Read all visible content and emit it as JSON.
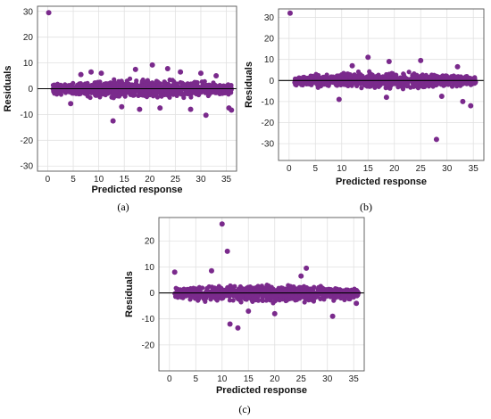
{
  "colors": {
    "points": "#7a2a8c",
    "zero_line": "#000000",
    "grid": "#e1e1e1"
  },
  "chart_data": [
    {
      "type": "scatter",
      "label": "(a)",
      "xlabel": "Predicted response",
      "ylabel": "Residuals",
      "xlim": [
        -2,
        37
      ],
      "ylim": [
        -32,
        32
      ],
      "xticks": [
        0,
        5,
        10,
        15,
        20,
        25,
        30,
        35
      ],
      "yticks": [
        -30,
        -20,
        -10,
        0,
        10,
        20,
        30
      ],
      "grid": true,
      "band": {
        "x_start": 1,
        "x_end": 36,
        "upper_mid": 4.5,
        "lower_mid": -4.5,
        "upper_end": 2.5,
        "lower_end": -3
      },
      "points": [
        {
          "x": 0.2,
          "y": 29.5
        },
        {
          "x": 12.8,
          "y": -12.5
        },
        {
          "x": 20.5,
          "y": 9.2
        },
        {
          "x": 17.2,
          "y": 7.5
        },
        {
          "x": 23.5,
          "y": 7.8
        },
        {
          "x": 8.5,
          "y": 6.5
        },
        {
          "x": 10.5,
          "y": 6.0
        },
        {
          "x": 31.0,
          "y": -10.3
        },
        {
          "x": 4.5,
          "y": -5.8
        },
        {
          "x": 33.0,
          "y": 5.0
        },
        {
          "x": 35.5,
          "y": -7.5
        },
        {
          "x": 36.0,
          "y": -8.3
        },
        {
          "x": 28.0,
          "y": -8.0
        },
        {
          "x": 26.0,
          "y": 6.5
        },
        {
          "x": 22.0,
          "y": -7.5
        },
        {
          "x": 14.5,
          "y": -7.0
        },
        {
          "x": 6.5,
          "y": 5.5
        },
        {
          "x": 30.0,
          "y": 6.0
        },
        {
          "x": 18.0,
          "y": -8.0
        }
      ]
    },
    {
      "type": "scatter",
      "label": "(b)",
      "xlabel": "Predicted response",
      "ylabel": "Residuals",
      "xlim": [
        -2,
        37
      ],
      "ylim": [
        -38,
        34
      ],
      "xticks": [
        0,
        5,
        10,
        15,
        20,
        25,
        30,
        35
      ],
      "yticks": [
        -30,
        -20,
        -10,
        0,
        10,
        20,
        30
      ],
      "grid": true,
      "band": {
        "x_start": 1,
        "x_end": 35.5,
        "upper_mid": 5,
        "lower_mid": -5,
        "upper_end": 2.5,
        "lower_end": -3
      },
      "points": [
        {
          "x": 0.2,
          "y": 32
        },
        {
          "x": 28.0,
          "y": -28
        },
        {
          "x": 34.5,
          "y": -12
        },
        {
          "x": 33.0,
          "y": -10
        },
        {
          "x": 15.0,
          "y": 11
        },
        {
          "x": 25.0,
          "y": 9.5
        },
        {
          "x": 19.0,
          "y": 9.0
        },
        {
          "x": 9.5,
          "y": -9
        },
        {
          "x": 18.5,
          "y": -8
        },
        {
          "x": 29.0,
          "y": -7.5
        },
        {
          "x": 32.0,
          "y": 6.5
        },
        {
          "x": 12.0,
          "y": 7
        }
      ]
    },
    {
      "type": "scatter",
      "label": "(c)",
      "xlabel": "Predicted response",
      "ylabel": "Residuals",
      "xlim": [
        -2,
        37
      ],
      "ylim": [
        -30,
        29
      ],
      "xticks": [
        0,
        5,
        10,
        15,
        20,
        25,
        30,
        35
      ],
      "yticks": [
        -20,
        -10,
        0,
        10,
        20
      ],
      "grid": true,
      "band": {
        "x_start": 1,
        "x_end": 36,
        "upper_mid": 4,
        "lower_mid": -4.5,
        "upper_end": 2.5,
        "lower_end": -3
      },
      "points": [
        {
          "x": 10.0,
          "y": 26.5
        },
        {
          "x": 11.0,
          "y": 16
        },
        {
          "x": 11.5,
          "y": -12
        },
        {
          "x": 13.0,
          "y": -13.5
        },
        {
          "x": 1.0,
          "y": 8
        },
        {
          "x": 8.0,
          "y": 8.5
        },
        {
          "x": 26.0,
          "y": 9.5
        },
        {
          "x": 31.0,
          "y": -9
        },
        {
          "x": 20.0,
          "y": -8
        },
        {
          "x": 15.0,
          "y": -7
        },
        {
          "x": 35.5,
          "y": -4
        },
        {
          "x": 25.0,
          "y": 6.5
        }
      ]
    }
  ]
}
